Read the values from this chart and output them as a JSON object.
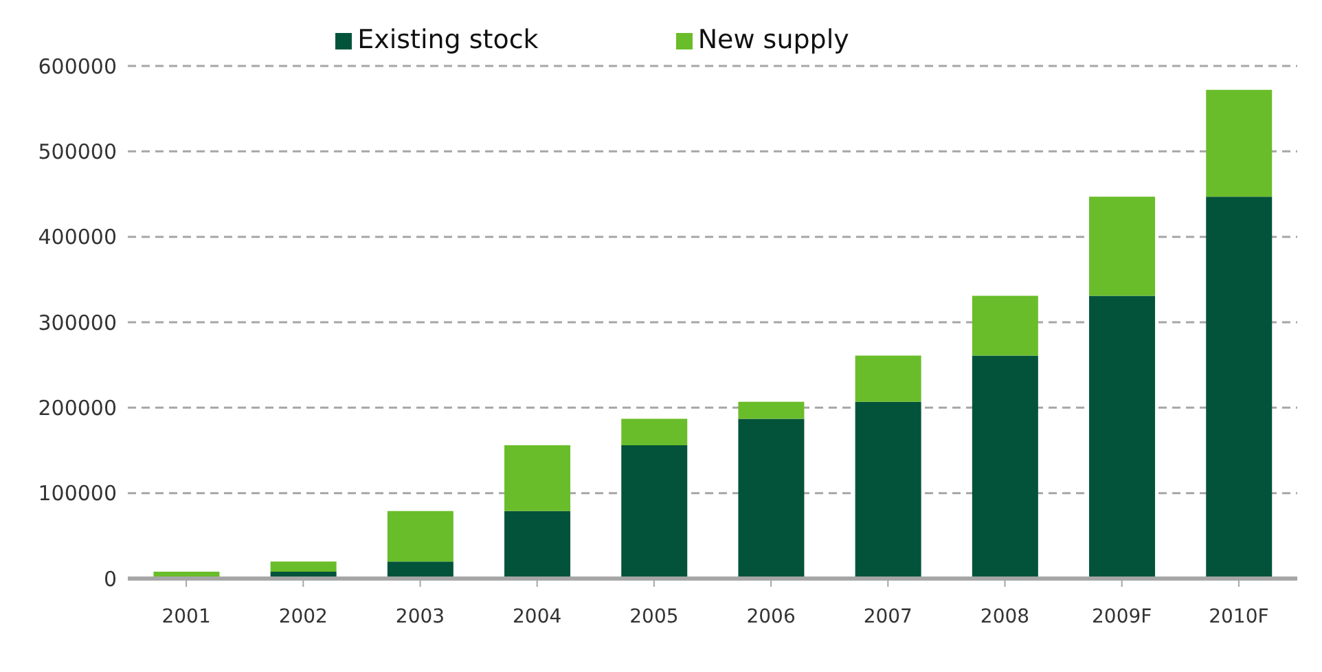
{
  "chart_data": {
    "type": "bar",
    "stacked": true,
    "categories": [
      "2001",
      "2002",
      "2003",
      "2004",
      "2005",
      "2006",
      "2007",
      "2008",
      "2009F",
      "2010F"
    ],
    "series": [
      {
        "name": "Existing stock",
        "color": "#03533a",
        "values": [
          0,
          8000,
          20000,
          79000,
          156000,
          187000,
          207000,
          261000,
          331000,
          447000
        ]
      },
      {
        "name": "New supply",
        "color": "#6abd2a",
        "values": [
          8000,
          12000,
          59000,
          77000,
          31000,
          20000,
          54000,
          70000,
          116000,
          125000
        ]
      }
    ],
    "ylim": [
      0,
      600000
    ],
    "yticks": [
      0,
      100000,
      200000,
      300000,
      400000,
      500000,
      600000
    ],
    "grid": "y",
    "legend": "top"
  }
}
